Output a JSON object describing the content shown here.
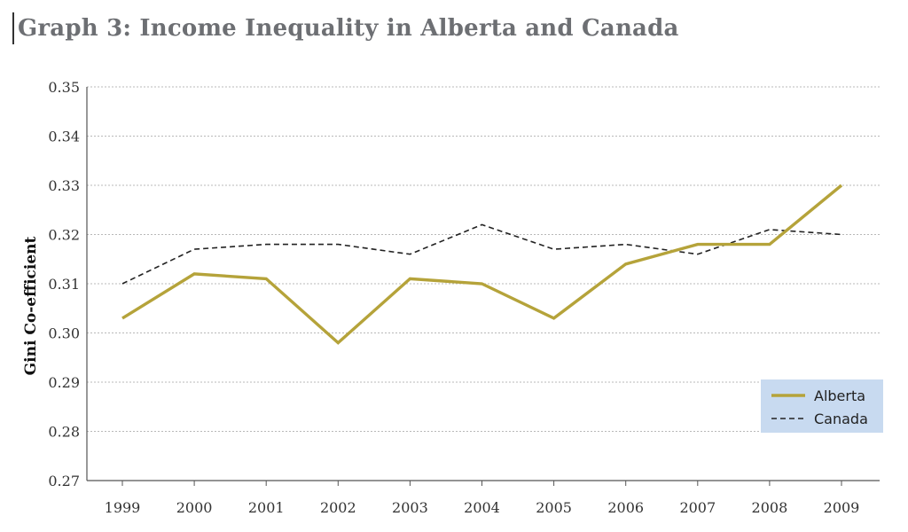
{
  "chart_data": {
    "type": "line",
    "title": "Graph 3: Income Inequality in Alberta and Canada",
    "xlabel": "",
    "ylabel": "Gini Co-efficient",
    "categories": [
      "1999",
      "2000",
      "2001",
      "2002",
      "2003",
      "2004",
      "2005",
      "2006",
      "2007",
      "2008",
      "2009"
    ],
    "ylim": [
      0.27,
      0.35
    ],
    "yticks": [
      "0.27",
      "0.28",
      "0.29",
      "0.30",
      "0.31",
      "0.32",
      "0.33",
      "0.34",
      "0.35"
    ],
    "grid": true,
    "legend_position": "bottom-right",
    "series": [
      {
        "name": "Alberta",
        "style": "solid",
        "color": "#b5a33a",
        "values": [
          0.303,
          0.312,
          0.311,
          0.298,
          0.311,
          0.31,
          0.303,
          0.314,
          0.318,
          0.318,
          0.33
        ]
      },
      {
        "name": "Canada",
        "style": "dashed",
        "color": "#222222",
        "values": [
          0.31,
          0.317,
          0.318,
          0.318,
          0.316,
          0.322,
          0.317,
          0.318,
          0.316,
          0.321,
          0.32
        ]
      }
    ],
    "legend_background": "#c8daf0"
  }
}
